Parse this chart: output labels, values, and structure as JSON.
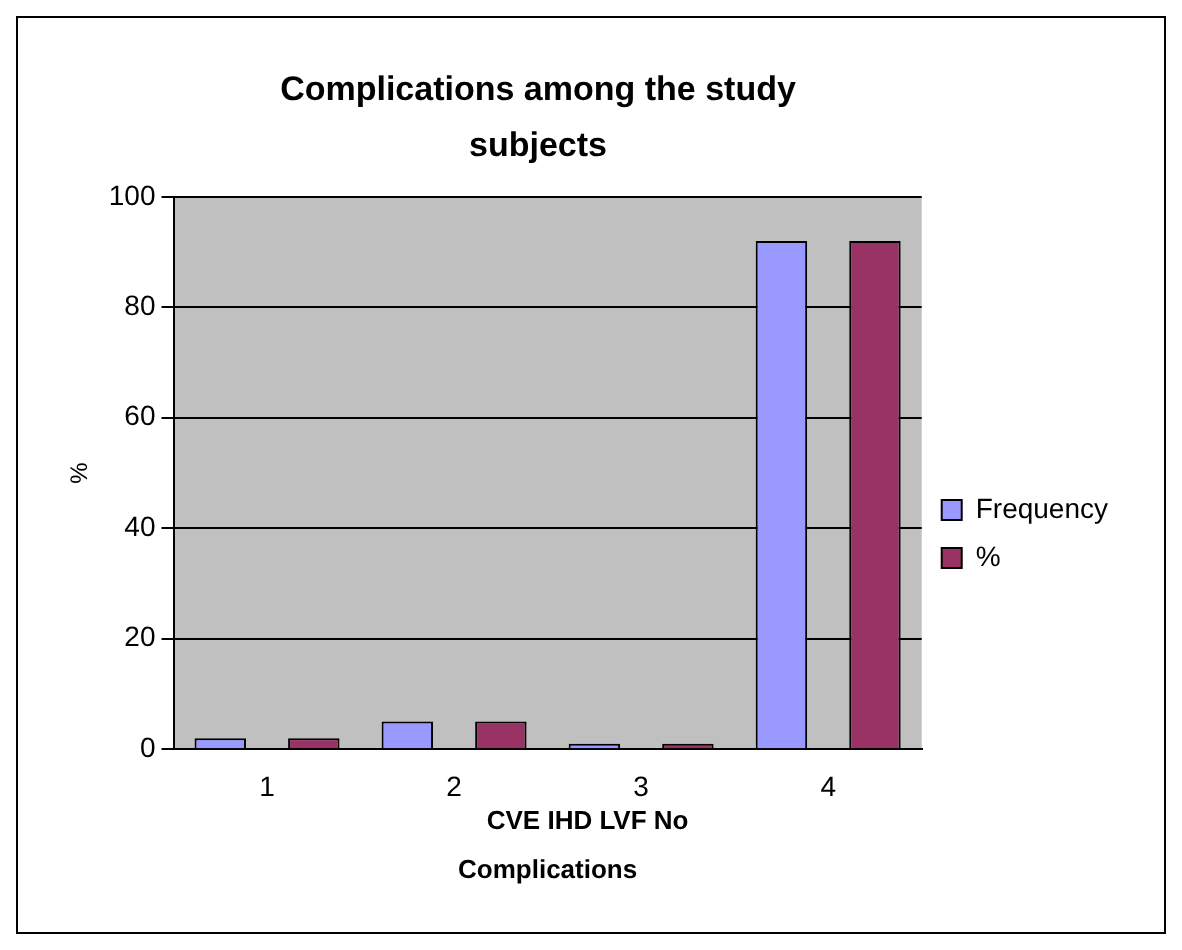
{
  "chart_data": {
    "type": "bar",
    "title": "Complications among the study subjects",
    "xlabel": "Complications",
    "ylabel": "%",
    "categories": [
      "1",
      "2",
      "3",
      "4"
    ],
    "series": [
      {
        "name": "Frequency",
        "color": "#9999ff",
        "values": [
          2,
          5,
          1,
          92
        ]
      },
      {
        "name": "%",
        "color": "#993366",
        "values": [
          2,
          5,
          1,
          92
        ]
      }
    ],
    "ylim": [
      0,
      100
    ],
    "yticks": [
      0,
      20,
      40,
      60,
      80,
      100
    ],
    "grid": "y",
    "legend": "right",
    "annotations": [
      "CVE IHD LVF No"
    ]
  }
}
